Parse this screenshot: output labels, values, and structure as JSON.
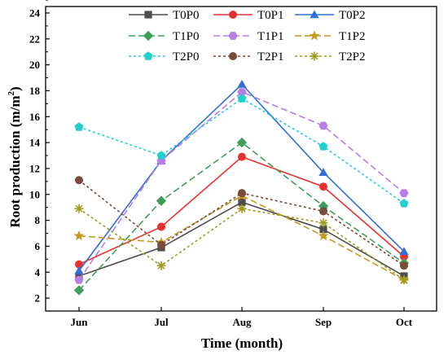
{
  "chart_data": {
    "type": "line",
    "xlabel": "Time (month)",
    "ylabel": "Root production (m/m²)",
    "ylabel_main": "Root production (m/m",
    "ylabel_sup": "2",
    "ylabel_end": ")",
    "categories": [
      "Jun",
      "Jul",
      "Aug",
      "Sep",
      "Oct"
    ],
    "ylim": [
      1,
      24.5
    ],
    "yticks": [
      "2",
      "4",
      "6",
      "8",
      "10",
      "12",
      "14",
      "16",
      "18",
      "20",
      "22",
      "24"
    ],
    "grid": false,
    "legend_placement": "top-center",
    "series": [
      {
        "name": "T0P0",
        "values": [
          3.7,
          5.9,
          9.4,
          7.3,
          3.7
        ],
        "color": "#4d4d4d",
        "dash": "solid",
        "marker": "square"
      },
      {
        "name": "T0P1",
        "values": [
          4.6,
          7.5,
          12.9,
          10.6,
          5.2
        ],
        "color": "#e8312f",
        "dash": "solid",
        "marker": "circle"
      },
      {
        "name": "T0P2",
        "values": [
          4.1,
          12.6,
          18.5,
          11.7,
          5.6
        ],
        "color": "#2f6fd6",
        "dash": "solid",
        "marker": "triangle"
      },
      {
        "name": "T1P0",
        "values": [
          2.6,
          9.5,
          14.0,
          9.1,
          4.7
        ],
        "color": "#3f9e5b",
        "dash": "dashed",
        "marker": "diamond"
      },
      {
        "name": "T1P1",
        "values": [
          3.4,
          12.6,
          17.9,
          15.3,
          10.1
        ],
        "color": "#b77ee6",
        "dash": "dashed",
        "marker": "hexagon"
      },
      {
        "name": "T1P2",
        "values": [
          6.8,
          6.3,
          9.9,
          6.8,
          3.4
        ],
        "color": "#c49a1e",
        "dash": "dashed",
        "marker": "star"
      },
      {
        "name": "T2P0",
        "values": [
          15.2,
          13.0,
          17.4,
          13.7,
          9.3
        ],
        "color": "#22cfcf",
        "dash": "dotted",
        "marker": "pentagon"
      },
      {
        "name": "T2P1",
        "values": [
          11.1,
          6.1,
          10.1,
          8.7,
          4.5
        ],
        "color": "#7a4a3a",
        "dash": "dotted",
        "marker": "circle-filled"
      },
      {
        "name": "T2P2",
        "values": [
          8.9,
          4.5,
          8.9,
          7.8,
          3.4
        ],
        "color": "#9c9c1f",
        "dash": "dotted",
        "marker": "asterisk"
      }
    ]
  }
}
